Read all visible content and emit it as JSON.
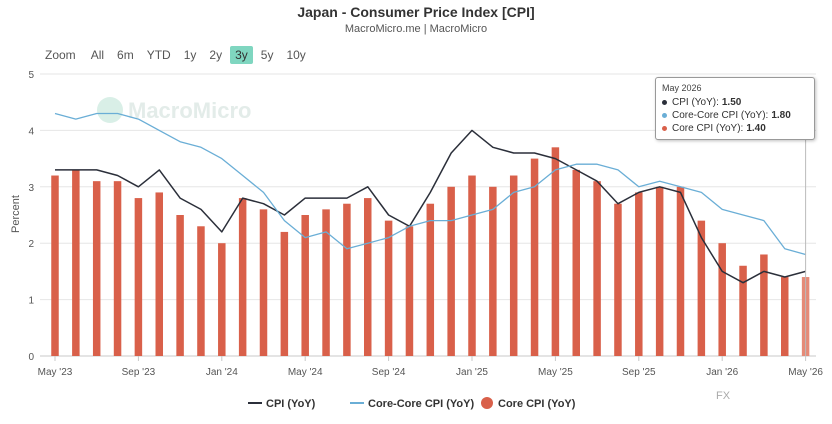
{
  "header": {
    "title": "Japan - Consumer Price Index [CPI]",
    "subtitle": "MacroMicro.me | MacroMicro"
  },
  "zoom": {
    "label": "Zoom",
    "options": [
      "All",
      "6m",
      "YTD",
      "1y",
      "2y",
      "3y",
      "5y",
      "10y"
    ],
    "active": "3y"
  },
  "watermark": "MacroMicro",
  "footer_mark": "FX",
  "tooltip": {
    "date": "May 2026",
    "rows": [
      {
        "label": "CPI (YoY):",
        "value": "1.50",
        "color": "#2b2f3a"
      },
      {
        "label": "Core-Core CPI (YoY):",
        "value": "1.80",
        "color": "#6aaed6"
      },
      {
        "label": "Core CPI (YoY):",
        "value": "1.40",
        "color": "#d9604a"
      }
    ]
  },
  "chart_data": {
    "type": "bar+line",
    "ylabel": "Percent",
    "ylim": [
      0,
      5
    ],
    "yticks": [
      0,
      1,
      2,
      3,
      4,
      5
    ],
    "grid": true,
    "legend_position": "bottom",
    "x": [
      "2023-05",
      "2023-06",
      "2023-07",
      "2023-08",
      "2023-09",
      "2023-10",
      "2023-11",
      "2023-12",
      "2024-01",
      "2024-02",
      "2024-03",
      "2024-04",
      "2024-05",
      "2024-06",
      "2024-07",
      "2024-08",
      "2024-09",
      "2024-10",
      "2024-11",
      "2024-12",
      "2025-01",
      "2025-02",
      "2025-03",
      "2025-04",
      "2025-05",
      "2025-06",
      "2025-07",
      "2025-08",
      "2025-09",
      "2025-10",
      "2025-11",
      "2025-12",
      "2026-01",
      "2026-02",
      "2026-03",
      "2026-04",
      "2026-05"
    ],
    "xtick_labels": [
      {
        "label": "May '23",
        "index": 0
      },
      {
        "label": "Sep '23",
        "index": 4
      },
      {
        "label": "Jan '24",
        "index": 8
      },
      {
        "label": "May '24",
        "index": 12
      },
      {
        "label": "Sep '24",
        "index": 16
      },
      {
        "label": "Jan '25",
        "index": 20
      },
      {
        "label": "May '25",
        "index": 24
      },
      {
        "label": "Sep '25",
        "index": 28
      },
      {
        "label": "Jan '26",
        "index": 32
      },
      {
        "label": "May '26",
        "index": 36
      }
    ],
    "series": [
      {
        "name": "CPI (YoY)",
        "kind": "line",
        "color": "#2b2f3a",
        "values": [
          3.3,
          3.3,
          3.3,
          3.2,
          3.0,
          3.3,
          2.8,
          2.6,
          2.2,
          2.8,
          2.7,
          2.5,
          2.8,
          2.8,
          2.8,
          3.0,
          2.5,
          2.3,
          2.9,
          3.6,
          4.0,
          3.7,
          3.6,
          3.6,
          3.5,
          3.3,
          3.1,
          2.7,
          2.9,
          3.0,
          2.9,
          2.1,
          1.5,
          1.3,
          1.5,
          1.4,
          1.5
        ]
      },
      {
        "name": "Core-Core CPI (YoY)",
        "kind": "line",
        "color": "#6aaed6",
        "values": [
          4.3,
          4.2,
          4.3,
          4.3,
          4.2,
          4.0,
          3.8,
          3.7,
          3.5,
          3.2,
          2.9,
          2.4,
          2.1,
          2.2,
          1.9,
          2.0,
          2.1,
          2.3,
          2.4,
          2.4,
          2.5,
          2.6,
          2.9,
          3.0,
          3.3,
          3.4,
          3.4,
          3.3,
          3.0,
          3.1,
          3.0,
          2.9,
          2.6,
          2.5,
          2.4,
          1.9,
          1.8
        ]
      },
      {
        "name": "Core CPI (YoY)",
        "kind": "bar",
        "color": "#d9604a",
        "values": [
          3.2,
          3.3,
          3.1,
          3.1,
          2.8,
          2.9,
          2.5,
          2.3,
          2.0,
          2.8,
          2.6,
          2.2,
          2.5,
          2.6,
          2.7,
          2.8,
          2.4,
          2.3,
          2.7,
          3.0,
          3.2,
          3.0,
          3.2,
          3.5,
          3.7,
          3.3,
          3.1,
          2.7,
          2.9,
          3.0,
          3.0,
          2.4,
          2.0,
          1.6,
          1.8,
          1.4,
          1.4
        ]
      }
    ]
  }
}
